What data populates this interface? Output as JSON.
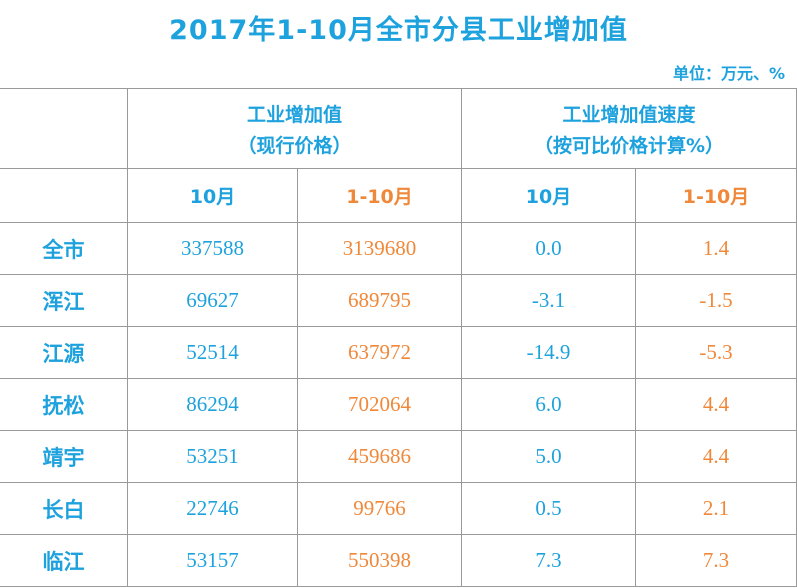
{
  "title": "2017年1-10月全市分县工业增加值",
  "unit": "单位：万元、%",
  "table": {
    "group_headers": [
      {
        "line1": "工业增加值",
        "line2": "（现行价格）"
      },
      {
        "line1": "工业增加值速度",
        "line2": "（按可比价格计算%）"
      }
    ],
    "sub_headers": [
      "10月",
      "1-10月",
      "10月",
      "1-10月"
    ],
    "rows": [
      [
        "全市",
        "337588",
        "3139680",
        "0.0",
        "1.4"
      ],
      [
        "浑江",
        "69627",
        "689795",
        "-3.1",
        "-1.5"
      ],
      [
        "江源",
        "52514",
        "637972",
        "-14.9",
        "-5.3"
      ],
      [
        "抚松",
        "86294",
        "702064",
        "6.0",
        "4.4"
      ],
      [
        "靖宇",
        "53251",
        "459686",
        "5.0",
        "4.4"
      ],
      [
        "长白",
        "22746",
        "99766",
        "0.5",
        "2.1"
      ],
      [
        "临江",
        "53157",
        "550398",
        "7.3",
        "7.3"
      ]
    ]
  }
}
